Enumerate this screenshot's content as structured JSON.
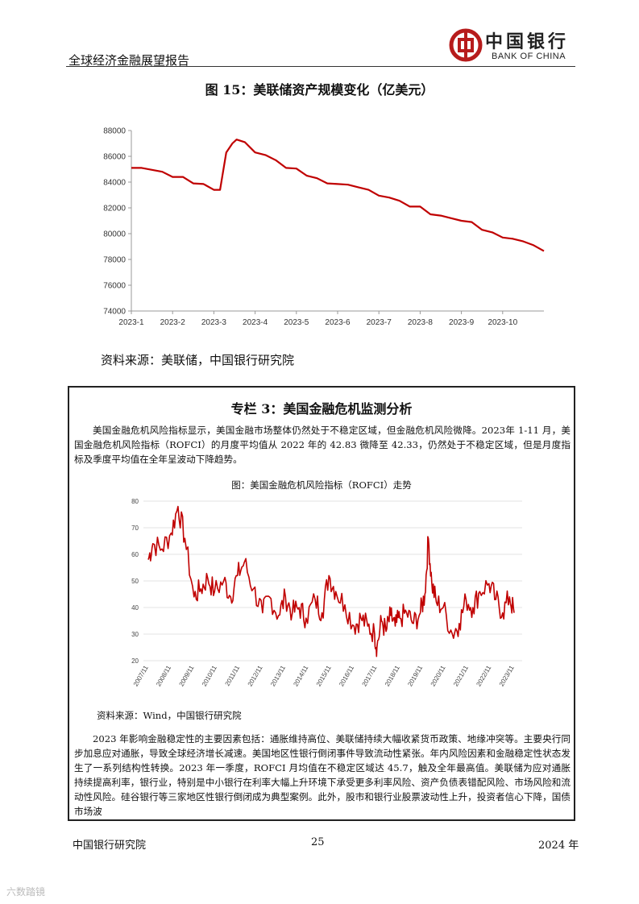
{
  "header": {
    "report_title": "全球经济金融展望报告",
    "logo_cn": "中国银行",
    "logo_en": "BANK OF CHINA"
  },
  "figure15": {
    "title": "图 15：美联储资产规模变化（亿美元）",
    "source": "资料来源：美联储，中国银行研究院"
  },
  "box": {
    "title": "专栏 3：美国金融危机监测分析",
    "para1": "美国金融危机风险指标显示，美国金融市场整体仍然处于不稳定区域，但金融危机风险微降。2023年 1-11 月，美国金融危机风险指标（ROFCI）的月度平均值从 2022 年的 42.83 微降至 42.33，仍然处于不稳定区域，但是月度指标及季度平均值在全年呈波动下降趋势。",
    "figure_title": "图：美国金融危机风险指标（ROFCI）走势",
    "source": "资料来源：Wind，中国银行研究院",
    "para2": "2023 年影响金融稳定性的主要因素包括：通胀维持高位、美联储持续大幅收紧货币政策、地缘冲突等。主要央行同步加息应对通胀，导致全球经济增长减速。美国地区性银行倒闭事件导致流动性紧张。年内风险因素和金融稳定性状态发生了一系列结构性转换。2023 年一季度，ROFCI 月均值在不稳定区域达 45.7，触及全年最高值。美联储为应对通胀持续提高利率，银行业，特别是中小银行在利率大幅上升环境下承受更多利率风险、资产负债表错配风险、市场风险和流动性风险。硅谷银行等三家地区性银行倒闭成为典型案例。此外，股市和银行业股票波动性上升，投资者信心下降，国债市场波"
  },
  "footer": {
    "left": "中国银行研究院",
    "page": "25",
    "right": "2024 年"
  },
  "watermark": "六数踏镜",
  "chart_data": [
    {
      "type": "line",
      "title": "图 15：美联储资产规模变化（亿美元）",
      "color": "#c00000",
      "ylim": [
        74000,
        88000
      ],
      "yticks": [
        74000,
        76000,
        78000,
        80000,
        82000,
        84000,
        86000,
        88000
      ],
      "xticks": [
        "2023-1",
        "2023-2",
        "2023-3",
        "2023-4",
        "2023-5",
        "2023-6",
        "2023-7",
        "2023-8",
        "2023-9",
        "2023-10"
      ],
      "grid": false,
      "series": [
        {
          "x_month": [
            1.0,
            1.25,
            1.5,
            1.75,
            2.0,
            2.25,
            2.5,
            2.75,
            3.0,
            3.15,
            3.3,
            3.45,
            3.55,
            3.75,
            4.0,
            4.25,
            4.5,
            4.75,
            5.0,
            5.25,
            5.5,
            5.75,
            6.0,
            6.25,
            6.5,
            6.75,
            7.0,
            7.25,
            7.5,
            7.75,
            8.0,
            8.25,
            8.5,
            8.75,
            9.0,
            9.25,
            9.5,
            9.75,
            10.0,
            10.25,
            10.5,
            10.75,
            11.0
          ],
          "values": [
            85100,
            85100,
            84950,
            84800,
            84400,
            84400,
            83900,
            83850,
            83400,
            83400,
            86300,
            87000,
            87300,
            87100,
            86300,
            86100,
            85700,
            85100,
            85050,
            84500,
            84300,
            83900,
            83850,
            83800,
            83600,
            83400,
            82950,
            82800,
            82550,
            82100,
            82100,
            81500,
            81400,
            81200,
            81000,
            80900,
            80300,
            80100,
            79700,
            79600,
            79400,
            79100,
            78650
          ]
        }
      ]
    },
    {
      "type": "line",
      "title": "图：美国金融危机风险指标（ROFCI）走势",
      "color": "#c00000",
      "ylim": [
        20,
        80
      ],
      "yticks": [
        20,
        30,
        40,
        50,
        60,
        70,
        80
      ],
      "xticks": [
        "2007/11",
        "2008/11",
        "2009/11",
        "2010/11",
        "2011/11",
        "2012/11",
        "2013/11",
        "2014/11",
        "2015/11",
        "2016/11",
        "2017/11",
        "2018/11",
        "2019/11",
        "2020/11",
        "2021/11",
        "2022/11",
        "2023/11"
      ],
      "grid": true,
      "series": [
        {
          "anchor_t": [
            0,
            0.2,
            0.6,
            1.0,
            1.3,
            1.6,
            2.0,
            2.3,
            2.6,
            2.9,
            3.3,
            3.6,
            3.9,
            4.2,
            4.6,
            5.0,
            5.3,
            5.7,
            6.0,
            6.3,
            6.6,
            6.9,
            7.3,
            7.6,
            7.9,
            8.2,
            8.6,
            9.0,
            9.3,
            9.6,
            9.9,
            10.0,
            10.2,
            10.4,
            10.6,
            10.8,
            11.0,
            11.3,
            11.6,
            11.9,
            12.1,
            12.25,
            12.4,
            12.6,
            12.9,
            13.3,
            13.6,
            13.9,
            14.2,
            14.5,
            14.9,
            15.2,
            15.5,
            15.8,
            16.0
          ],
          "anchor_v": [
            58,
            64,
            62,
            68,
            78,
            66,
            44,
            47,
            51,
            46,
            50,
            44,
            52,
            57,
            47,
            38,
            44,
            37,
            44,
            38,
            40,
            36,
            43,
            38,
            52,
            46,
            41,
            33,
            36,
            33,
            30,
            25,
            35,
            31,
            37,
            33,
            36,
            38,
            34,
            38,
            45,
            66,
            49,
            42,
            40,
            30,
            34,
            43,
            40,
            46,
            49,
            43,
            38,
            44,
            38
          ]
        }
      ]
    }
  ]
}
